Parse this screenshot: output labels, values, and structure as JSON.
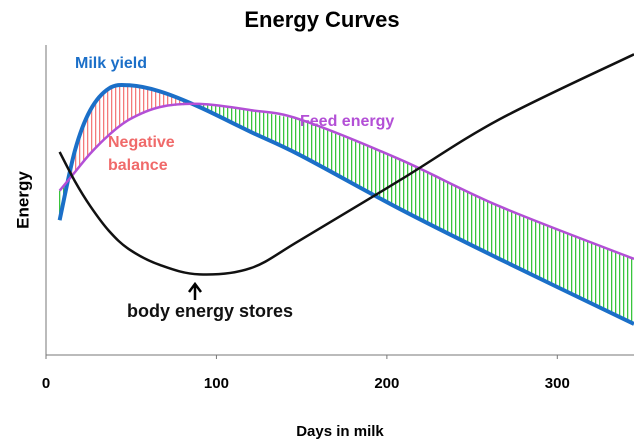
{
  "chart_data": {
    "type": "line",
    "title": "Energy Curves",
    "x_label": "Days in milk",
    "y_label": "Energy",
    "x": [
      8,
      17,
      26,
      37,
      49,
      67,
      90,
      120,
      149,
      208,
      266,
      345
    ],
    "series": [
      {
        "name": "Milk yield",
        "color": "#1b6fc8",
        "values": [
          43.5,
          66,
          79,
          86,
          87,
          85,
          80,
          72,
          64.5,
          47,
          31,
          10
        ]
      },
      {
        "name": "Feed energy",
        "color": "#b34fd6",
        "values": [
          53,
          59,
          65,
          71,
          76,
          80,
          81,
          79,
          76,
          63,
          48,
          31
        ]
      },
      {
        "name": "body energy stores",
        "color": "#111111",
        "values": [
          65.5,
          56,
          48,
          40,
          34,
          29,
          26,
          28,
          37,
          56.5,
          76,
          97
        ]
      }
    ],
    "annotation": [
      "Negative",
      "balance"
    ],
    "xlim": [
      0,
      345
    ],
    "ylim": [
      0,
      100
    ],
    "xticks": [
      0,
      100,
      200,
      300
    ]
  }
}
